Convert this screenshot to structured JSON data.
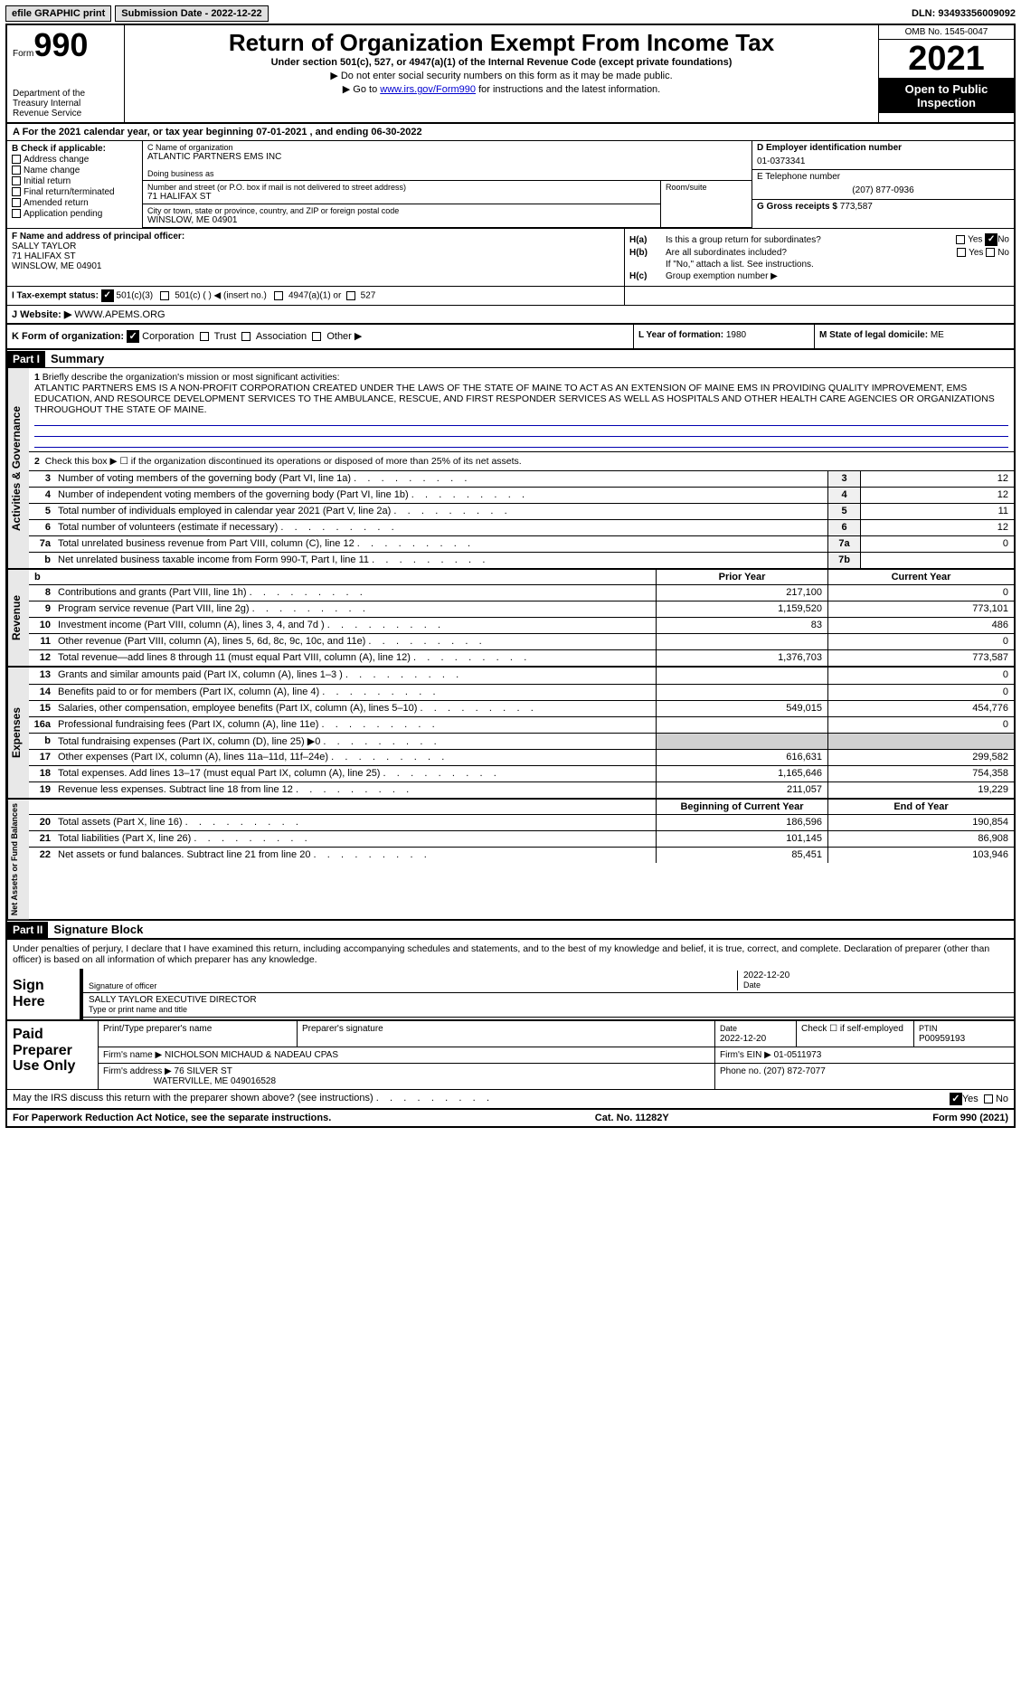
{
  "top": {
    "efile": "efile GRAPHIC print",
    "submission": "Submission Date - 2022-12-22",
    "dln": "DLN: 93493356009092"
  },
  "hdr": {
    "form_word": "Form",
    "form_num": "990",
    "title": "Return of Organization Exempt From Income Tax",
    "subtitle": "Under section 501(c), 527, or 4947(a)(1) of the Internal Revenue Code (except private foundations)",
    "warn": "▶ Do not enter social security numbers on this form as it may be made public.",
    "goto_pre": "▶ Go to ",
    "goto_link": "www.irs.gov/Form990",
    "goto_post": " for instructions and the latest information.",
    "dept": "Department of the Treasury Internal Revenue Service",
    "omb": "OMB No. 1545-0047",
    "year": "2021",
    "open": "Open to Public Inspection"
  },
  "lineA": "A For the 2021 calendar year, or tax year beginning 07-01-2021    , and ending 06-30-2022",
  "colB": {
    "hdr": "B Check if applicable:",
    "items": [
      "Address change",
      "Name change",
      "Initial return",
      "Final return/terminated",
      "Amended return",
      "Application pending"
    ]
  },
  "colC": {
    "name_lbl": "C Name of organization",
    "name": "ATLANTIC PARTNERS EMS INC",
    "dba": "Doing business as",
    "addr_lbl": "Number and street (or P.O. box if mail is not delivered to street address)",
    "addr": "71 HALIFAX ST",
    "room_lbl": "Room/suite",
    "city_lbl": "City or town, state or province, country, and ZIP or foreign postal code",
    "city": "WINSLOW, ME  04901"
  },
  "colD": {
    "ein_lbl": "D Employer identification number",
    "ein": "01-0373341",
    "tel_lbl": "E Telephone number",
    "tel": "(207) 877-0936",
    "gross_lbl": "G Gross receipts $",
    "gross": "773,587"
  },
  "secF": {
    "lbl": "F  Name and address of principal officer:",
    "name": "SALLY TAYLOR",
    "addr1": "71 HALIFAX ST",
    "addr2": "WINSLOW, ME  04901"
  },
  "secH": {
    "a_lbl": "H(a)",
    "a_txt": "Is this a group return for subordinates?",
    "b_lbl": "H(b)",
    "b_txt": "Are all subordinates included?",
    "b_note": "If \"No,\" attach a list. See instructions.",
    "c_lbl": "H(c)",
    "c_txt": "Group exemption number ▶",
    "yes": "Yes",
    "no": "No"
  },
  "secI": {
    "lbl": "I   Tax-exempt status:",
    "o1": "501(c)(3)",
    "o2": "501(c) (   ) ◀ (insert no.)",
    "o3": "4947(a)(1) or",
    "o4": "527"
  },
  "secJ": {
    "lbl": "J   Website: ▶",
    "val": "WWW.APEMS.ORG"
  },
  "secK": {
    "lbl": "K Form of organization:",
    "opts": [
      "Corporation",
      "Trust",
      "Association",
      "Other ▶"
    ],
    "l_lbl": "L Year of formation:",
    "l_val": "1980",
    "m_lbl": "M State of legal domicile:",
    "m_val": "ME"
  },
  "part1": {
    "hdr": "Part I",
    "title": "Summary",
    "q1_lbl": "1",
    "q1": "Briefly describe the organization's mission or most significant activities:",
    "mission": "ATLANTIC PARTNERS EMS IS A NON-PROFIT CORPORATION CREATED UNDER THE LAWS OF THE STATE OF MAINE TO ACT AS AN EXTENSION OF MAINE EMS IN PROVIDING QUALITY IMPROVEMENT, EMS EDUCATION, AND RESOURCE DEVELOPMENT SERVICES TO THE AMBULANCE, RESCUE, AND FIRST RESPONDER SERVICES AS WELL AS HOSPITALS AND OTHER HEALTH CARE AGENCIES OR ORGANIZATIONS THROUGHOUT THE STATE OF MAINE.",
    "q2": "Check this box ▶ ☐ if the organization discontinued its operations or disposed of more than 25% of its net assets.",
    "rows_gov": [
      {
        "n": "3",
        "t": "Number of voting members of the governing body (Part VI, line 1a)",
        "bx": "3",
        "v": "12"
      },
      {
        "n": "4",
        "t": "Number of independent voting members of the governing body (Part VI, line 1b)",
        "bx": "4",
        "v": "12"
      },
      {
        "n": "5",
        "t": "Total number of individuals employed in calendar year 2021 (Part V, line 2a)",
        "bx": "5",
        "v": "11"
      },
      {
        "n": "6",
        "t": "Total number of volunteers (estimate if necessary)",
        "bx": "6",
        "v": "12"
      },
      {
        "n": "7a",
        "t": "Total unrelated business revenue from Part VIII, column (C), line 12",
        "bx": "7a",
        "v": "0"
      },
      {
        "n": "b",
        "t": "Net unrelated business taxable income from Form 990-T, Part I, line 11",
        "bx": "7b",
        "v": ""
      }
    ],
    "col_hdr": {
      "prior": "Prior Year",
      "current": "Current Year"
    },
    "rows_rev": [
      {
        "n": "8",
        "t": "Contributions and grants (Part VIII, line 1h)",
        "v1": "217,100",
        "v2": "0"
      },
      {
        "n": "9",
        "t": "Program service revenue (Part VIII, line 2g)",
        "v1": "1,159,520",
        "v2": "773,101"
      },
      {
        "n": "10",
        "t": "Investment income (Part VIII, column (A), lines 3, 4, and 7d )",
        "v1": "83",
        "v2": "486"
      },
      {
        "n": "11",
        "t": "Other revenue (Part VIII, column (A), lines 5, 6d, 8c, 9c, 10c, and 11e)",
        "v1": "",
        "v2": "0"
      },
      {
        "n": "12",
        "t": "Total revenue—add lines 8 through 11 (must equal Part VIII, column (A), line 12)",
        "v1": "1,376,703",
        "v2": "773,587"
      }
    ],
    "rows_exp": [
      {
        "n": "13",
        "t": "Grants and similar amounts paid (Part IX, column (A), lines 1–3 )",
        "v1": "",
        "v2": "0"
      },
      {
        "n": "14",
        "t": "Benefits paid to or for members (Part IX, column (A), line 4)",
        "v1": "",
        "v2": "0"
      },
      {
        "n": "15",
        "t": "Salaries, other compensation, employee benefits (Part IX, column (A), lines 5–10)",
        "v1": "549,015",
        "v2": "454,776"
      },
      {
        "n": "16a",
        "t": "Professional fundraising fees (Part IX, column (A), line 11e)",
        "v1": "",
        "v2": "0"
      },
      {
        "n": "b",
        "t": "Total fundraising expenses (Part IX, column (D), line 25) ▶0",
        "v1": "",
        "v2": "",
        "shade": true
      },
      {
        "n": "17",
        "t": "Other expenses (Part IX, column (A), lines 11a–11d, 11f–24e)",
        "v1": "616,631",
        "v2": "299,582"
      },
      {
        "n": "18",
        "t": "Total expenses. Add lines 13–17 (must equal Part IX, column (A), line 25)",
        "v1": "1,165,646",
        "v2": "754,358"
      },
      {
        "n": "19",
        "t": "Revenue less expenses. Subtract line 18 from line 12",
        "v1": "211,057",
        "v2": "19,229"
      }
    ],
    "col_hdr2": {
      "begin": "Beginning of Current Year",
      "end": "End of Year"
    },
    "rows_net": [
      {
        "n": "20",
        "t": "Total assets (Part X, line 16)",
        "v1": "186,596",
        "v2": "190,854"
      },
      {
        "n": "21",
        "t": "Total liabilities (Part X, line 26)",
        "v1": "101,145",
        "v2": "86,908"
      },
      {
        "n": "22",
        "t": "Net assets or fund balances. Subtract line 21 from line 20",
        "v1": "85,451",
        "v2": "103,946"
      }
    ],
    "side_gov": "Activities & Governance",
    "side_rev": "Revenue",
    "side_exp": "Expenses",
    "side_net": "Net Assets or Fund Balances"
  },
  "part2": {
    "hdr": "Part II",
    "title": "Signature Block",
    "decl": "Under penalties of perjury, I declare that I have examined this return, including accompanying schedules and statements, and to the best of my knowledge and belief, it is true, correct, and complete. Declaration of preparer (other than officer) is based on all information of which preparer has any knowledge.",
    "sign_here": "Sign Here",
    "sig_officer": "Signature of officer",
    "sig_date": "2022-12-20",
    "date_lbl": "Date",
    "sig_name": "SALLY TAYLOR  EXECUTIVE DIRECTOR",
    "sig_name_lbl": "Type or print name and title",
    "paid": "Paid Preparer Use Only",
    "p_name_lbl": "Print/Type preparer's name",
    "p_sig_lbl": "Preparer's signature",
    "p_date_lbl": "Date",
    "p_date": "2022-12-20",
    "p_self": "Check ☐ if self-employed",
    "p_ptin_lbl": "PTIN",
    "p_ptin": "P00959193",
    "firm_name_lbl": "Firm's name    ▶",
    "firm_name": "NICHOLSON MICHAUD & NADEAU CPAS",
    "firm_ein_lbl": "Firm's EIN ▶",
    "firm_ein": "01-0511973",
    "firm_addr_lbl": "Firm's address ▶",
    "firm_addr1": "76 SILVER ST",
    "firm_addr2": "WATERVILLE, ME  049016528",
    "firm_phone_lbl": "Phone no.",
    "firm_phone": "(207) 872-7077",
    "discuss": "May the IRS discuss this return with the preparer shown above? (see instructions)",
    "yes": "Yes",
    "no": "No"
  },
  "foot": {
    "l": "For Paperwork Reduction Act Notice, see the separate instructions.",
    "m": "Cat. No. 11282Y",
    "r": "Form 990 (2021)"
  }
}
